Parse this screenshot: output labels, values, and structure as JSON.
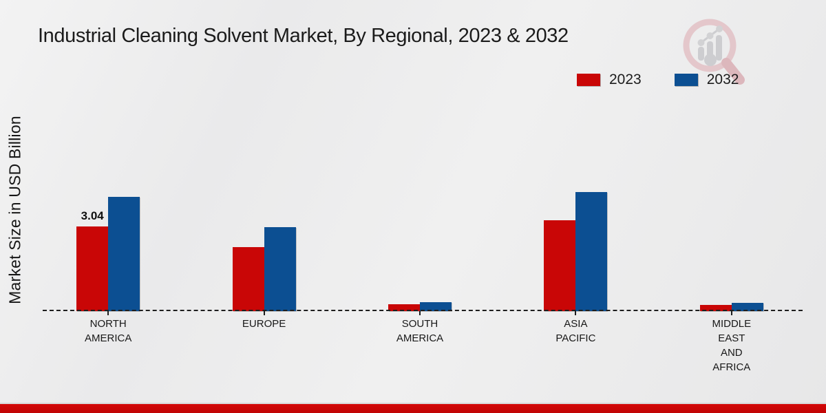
{
  "title": "Industrial Cleaning Solvent Market, By Regional, 2023 & 2032",
  "legend": {
    "items": [
      {
        "label": "2023",
        "color": "#c90606"
      },
      {
        "label": "2032",
        "color": "#0c4f92"
      }
    ]
  },
  "colors": {
    "series_2023": "#c90606",
    "series_2032": "#0c4f92",
    "bottom_strip": "#c00404",
    "background": "#ececec",
    "axis_line": "#1d1d1d"
  },
  "chart_data": {
    "type": "bar",
    "title": "Industrial Cleaning Solvent Market, By Regional, 2023 & 2032",
    "xlabel": "",
    "ylabel": "Market Size in USD Billion",
    "unit": "USD Billion",
    "grid": false,
    "legend_position": "top-right",
    "baseline_value": 0,
    "baseline_style": "dashed",
    "categories": [
      "North America",
      "Europe",
      "South America",
      "Asia Pacific",
      "Middle East and Africa"
    ],
    "category_labels": [
      [
        "NORTH",
        "AMERICA"
      ],
      [
        "EUROPE"
      ],
      [
        "SOUTH",
        "AMERICA"
      ],
      [
        "ASIA",
        "PACIFIC"
      ],
      [
        "MIDDLE",
        "EAST",
        "AND",
        "AFRICA"
      ]
    ],
    "series": [
      {
        "name": "2023",
        "color": "#c90606",
        "values": [
          3.04,
          2.3,
          0.25,
          3.25,
          0.23
        ]
      },
      {
        "name": "2032",
        "color": "#0c4f92",
        "values": [
          4.1,
          3.0,
          0.33,
          4.27,
          0.3
        ]
      }
    ],
    "data_labels": [
      {
        "text": "3.04",
        "category_index": 0,
        "series_index": 0
      }
    ]
  }
}
